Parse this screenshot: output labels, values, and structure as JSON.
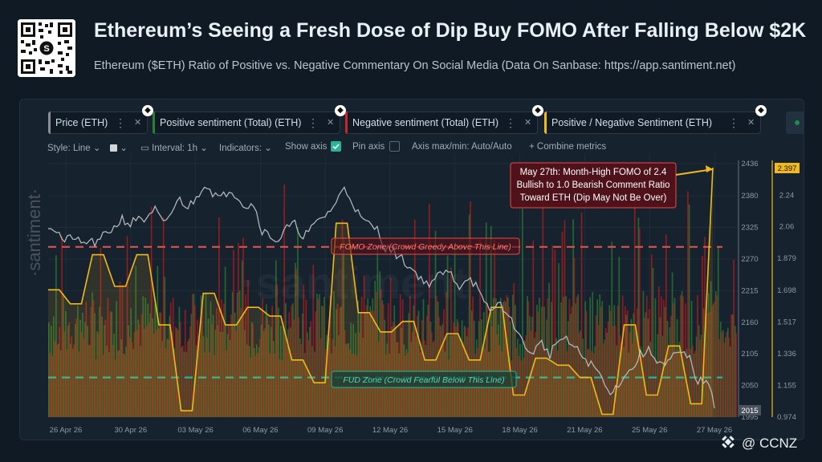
{
  "header": {
    "title": "Ethereum’s Seeing a Fresh Dose of Dip Buy FOMO After Falling Below $2K",
    "subtitle": "Ethereum ($ETH) Ratio of Positive vs. Negative Commentary On Social Media (Data On Sanbase: https://app.santiment.net)"
  },
  "tabs": [
    {
      "label": "Price (ETH)",
      "color": "#8a8f95"
    },
    {
      "label": "Positive sentiment (Total) (ETH)",
      "color": "#2e7d32"
    },
    {
      "label": "Negative sentiment (Total) (ETH)",
      "color": "#c62828"
    },
    {
      "label": "Positive / Negative Sentiment (ETH)",
      "color": "#f2b91c"
    }
  ],
  "toolbar": {
    "style": "Style: Line",
    "interval": "Interval: 1h",
    "indicators": "Indicators:",
    "show_axis": "Show axis",
    "pin_axis": "Pin axis",
    "axis_minmax": "Axis max/min: Auto/Auto",
    "combine": "+ Combine metrics"
  },
  "brand": {
    "side": "·santiment·",
    "watermark": "·santiment·",
    "credit": "@ CCNZ"
  },
  "annotations": {
    "fomo_box": [
      "May 27th: Month-High FOMO of 2.4",
      "Bullish to 1.0 Bearish Comment Ratio",
      "Toward ETH (Dip May Not Be Over)"
    ],
    "fomo_zone": "FOMO Zone (Crowd Greedy Above This Line)",
    "fud_zone": "FUD Zone (Crowd Fearful Below This Line)",
    "price_last": "2015",
    "ratio_last": "2.397"
  },
  "colors": {
    "price": "#b9bec4",
    "positive": "#2e7d32",
    "negative": "#b71c1c",
    "ratio": "#f2b91c",
    "fomo_line": "#e0504a",
    "fud_line": "#2bb39a"
  },
  "chart_data": {
    "type": "line",
    "x_ticks": [
      "26 Apr 26",
      "30 Apr 26",
      "03 May 26",
      "06 May 26",
      "09 May 26",
      "12 May 26",
      "15 May 26",
      "18 May 26",
      "21 May 26",
      "25 May 26",
      "27 May 26"
    ],
    "price_axis": {
      "ticks": [
        2436,
        2380,
        2325,
        2270,
        2215,
        2160,
        2105,
        2050,
        1995
      ],
      "ylim": [
        1995,
        2436
      ]
    },
    "ratio_axis": {
      "ticks": [
        "2.24",
        "2.06",
        "1.879",
        "1.698",
        "1.517",
        "1.336",
        "1.155",
        "0.974"
      ],
      "ylim": [
        0.974,
        2.42
      ]
    },
    "series": [
      {
        "name": "Price (ETH)",
        "axis": "price",
        "values": [
          2330,
          2320,
          2300,
          2310,
          2295,
          2302,
          2296,
          2316,
          2324,
          2341,
          2330,
          2345,
          2336,
          2356,
          2330,
          2352,
          2374,
          2360,
          2376,
          2402,
          2386,
          2374,
          2392,
          2380,
          2361,
          2366,
          2320,
          2310,
          2302,
          2324,
          2330,
          2310,
          2322,
          2339,
          2350,
          2368,
          2395,
          2370,
          2340,
          2330,
          2322,
          2290,
          2282,
          2270,
          2255,
          2242,
          2226,
          2235,
          2246,
          2244,
          2222,
          2240,
          2224,
          2190,
          2180,
          2196,
          2166,
          2150,
          2112,
          2110,
          2124,
          2104,
          2130,
          2128,
          2116,
          2100,
          2086,
          2072,
          2040,
          2045,
          2068,
          2078,
          2104,
          2110,
          2096,
          2084,
          2100,
          2106,
          2096,
          2055,
          2062,
          2015
        ],
        "note": "hourly price, sampled"
      },
      {
        "name": "Positive / Negative Sentiment (ETH)",
        "axis": "ratio",
        "values": [
          1.7,
          1.7,
          1.62,
          1.62,
          1.9,
          1.9,
          1.72,
          1.72,
          1.9,
          1.9,
          1.5,
          1.5,
          1.01,
          1.01,
          1.68,
          1.68,
          1.5,
          1.5,
          1.6,
          1.6,
          1.55,
          1.55,
          1.3,
          1.3,
          1.17,
          1.17,
          2.08,
          2.08,
          1.57,
          1.57,
          1.46,
          1.46,
          1.52,
          1.52,
          1.3,
          1.3,
          1.45,
          1.45,
          1.3,
          1.3,
          1.6,
          1.6,
          1.1,
          1.1,
          1.31,
          1.31,
          1.27,
          1.27,
          1.2,
          1.2,
          0.99,
          0.99,
          1.5,
          1.5,
          1.1,
          1.1,
          1.38,
          1.38,
          1.05,
          1.05,
          2.397
        ]
      }
    ],
    "reference_lines": [
      {
        "label": "FOMO Zone (Crowd Greedy Above This Line)",
        "ratio": 1.945
      },
      {
        "label": "FUD Zone (Crowd Fearful Below This Line)",
        "ratio": 1.2
      }
    ],
    "bars": {
      "positive_note": "hourly positive sentiment volume (green bars)",
      "negative_note": "hourly negative sentiment volume (red bars)"
    }
  }
}
